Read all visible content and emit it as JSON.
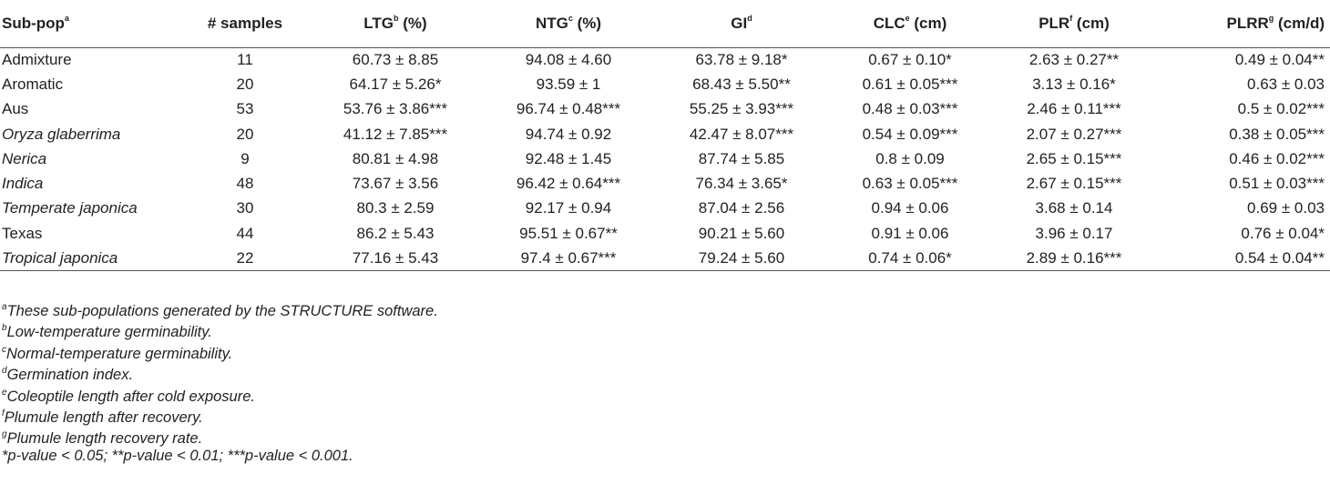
{
  "table": {
    "headers": [
      {
        "label": "Sub-pop",
        "sup": "a"
      },
      {
        "label": "# samples",
        "sup": ""
      },
      {
        "label": "LTG",
        "sup": "b",
        "unit": " (%)"
      },
      {
        "label": "NTG",
        "sup": "c",
        "unit": " (%)"
      },
      {
        "label": "GI",
        "sup": "d",
        "unit": ""
      },
      {
        "label": "CLC",
        "sup": "e",
        "unit": " (cm)"
      },
      {
        "label": "PLR",
        "sup": "f",
        "unit": " (cm)"
      },
      {
        "label": "PLRR",
        "sup": "g",
        "unit": " (cm/d)"
      }
    ],
    "rows": [
      {
        "name": "Admixture",
        "italic": false,
        "samples": "11",
        "ltg": "60.73 ± 8.85",
        "ntg": "94.08 ± 4.60",
        "gi": "63.78 ± 9.18*",
        "clc": "0.67 ± 0.10*",
        "plr": "2.63 ± 0.27**",
        "plrr": "0.49 ± 0.04**"
      },
      {
        "name": "Aromatic",
        "italic": false,
        "samples": "20",
        "ltg": "64.17 ± 5.26*",
        "ntg": "93.59 ± 1",
        "gi": "68.43 ± 5.50**",
        "clc": "0.61 ± 0.05***",
        "plr": "3.13 ± 0.16*",
        "plrr": "0.63 ± 0.03"
      },
      {
        "name": "Aus",
        "italic": false,
        "samples": "53",
        "ltg": "53.76 ± 3.86***",
        "ntg": "96.74 ± 0.48***",
        "gi": "55.25 ± 3.93***",
        "clc": "0.48 ± 0.03***",
        "plr": "2.46 ± 0.11***",
        "plrr": "0.5 ± 0.02***"
      },
      {
        "name": "Oryza glaberrima",
        "italic": true,
        "samples": "20",
        "ltg": "41.12 ± 7.85***",
        "ntg": "94.74 ± 0.92",
        "gi": "42.47 ± 8.07***",
        "clc": "0.54 ± 0.09***",
        "plr": "2.07 ± 0.27***",
        "plrr": "0.38 ± 0.05***"
      },
      {
        "name": "Nerica",
        "italic": true,
        "samples": "9",
        "ltg": "80.81 ± 4.98",
        "ntg": "92.48 ± 1.45",
        "gi": "87.74 ± 5.85",
        "clc": "0.8 ± 0.09",
        "plr": "2.65 ± 0.15***",
        "plrr": "0.46 ± 0.02***"
      },
      {
        "name": "Indica",
        "italic": true,
        "samples": "48",
        "ltg": "73.67 ± 3.56",
        "ntg": "96.42 ± 0.64***",
        "gi": "76.34 ± 3.65*",
        "clc": "0.63 ± 0.05***",
        "plr": "2.67 ± 0.15***",
        "plrr": "0.51 ± 0.03***"
      },
      {
        "name": "Temperate japonica",
        "italic": true,
        "samples": "30",
        "ltg": "80.3 ± 2.59",
        "ntg": "92.17 ± 0.94",
        "gi": "87.04 ± 2.56",
        "clc": "0.94 ± 0.06",
        "plr": "3.68 ± 0.14",
        "plrr": "0.69 ± 0.03"
      },
      {
        "name": "Texas",
        "italic": false,
        "samples": "44",
        "ltg": "86.2 ± 5.43",
        "ntg": "95.51 ± 0.67**",
        "gi": "90.21 ± 5.60",
        "clc": "0.91 ± 0.06",
        "plr": "3.96 ± 0.17",
        "plrr": "0.76 ± 0.04*"
      },
      {
        "name": "Tropical japonica",
        "italic": true,
        "samples": "22",
        "ltg": "77.16 ± 5.43",
        "ntg": "97.4 ± 0.67***",
        "gi": "79.24 ± 5.60",
        "clc": "0.74 ± 0.06*",
        "plr": "2.89 ± 0.16***",
        "plrr": "0.54 ± 0.04**"
      }
    ]
  },
  "footnotes": [
    {
      "sup": "a",
      "text": "These sub-populations generated by the STRUCTURE software."
    },
    {
      "sup": "b",
      "text": "Low-temperature germinability."
    },
    {
      "sup": "c",
      "text": "Normal-temperature germinability."
    },
    {
      "sup": "d",
      "text": "Germination index."
    },
    {
      "sup": "e",
      "text": "Coleoptile length after cold exposure."
    },
    {
      "sup": "f",
      "text": "Plumule length after recovery."
    },
    {
      "sup": "g",
      "text": "Plumule length recovery rate."
    },
    {
      "sup": "",
      "text": "*p-value < 0.05; **p-value < 0.01; ***p-value < 0.001."
    }
  ]
}
